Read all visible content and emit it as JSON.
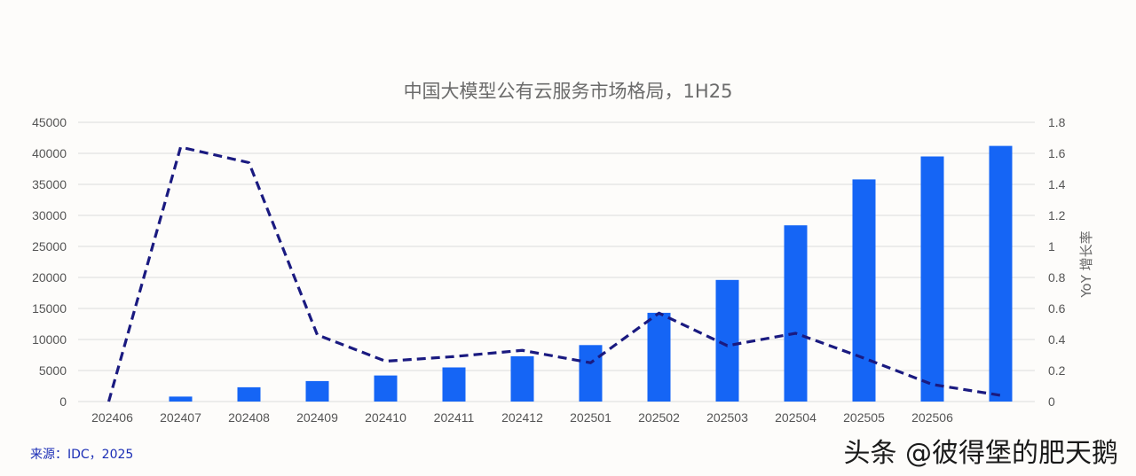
{
  "chart_data": {
    "type": "bar",
    "title": "中国大模型公有云服务市场格局，1H25",
    "categories": [
      "202406",
      "202407",
      "202408",
      "202409",
      "202410",
      "202411",
      "202412",
      "202501",
      "202502",
      "202503",
      "202504",
      "202505",
      "202506",
      ""
    ],
    "series": [
      {
        "type": "bar",
        "axis": "left",
        "values": [
          0,
          800,
          2300,
          3300,
          4200,
          5500,
          7300,
          9100,
          14300,
          19600,
          28400,
          35800,
          39500,
          41200
        ]
      },
      {
        "type": "line",
        "axis": "right",
        "style": "dashed",
        "values": [
          0,
          1.64,
          1.54,
          0.43,
          0.26,
          0.29,
          0.33,
          0.25,
          0.57,
          0.36,
          0.44,
          0.28,
          0.11,
          0.04
        ]
      }
    ],
    "y_left": {
      "min": 0,
      "max": 45000,
      "ticks": [
        "0",
        "5000",
        "10000",
        "15000",
        "20000",
        "25000",
        "30000",
        "35000",
        "40000",
        "45000"
      ]
    },
    "y_right": {
      "min": 0,
      "max": 1.8,
      "label": "YoY 增长率",
      "ticks": [
        "0",
        "0.2",
        "0.4",
        "0.6",
        "0.8",
        "1",
        "1.2",
        "1.4",
        "1.6",
        "1.8"
      ]
    },
    "grid": true,
    "colors": {
      "bar": "#1565f5",
      "line": "#1a1a80",
      "grid": "#dcdcdc"
    }
  },
  "source_text": "来源：IDC，2025",
  "watermark": "头条 @彼得堡的肥天鹅"
}
